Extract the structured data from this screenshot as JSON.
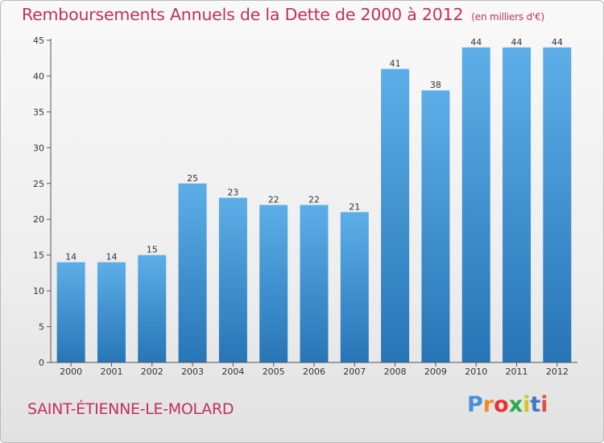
{
  "title": "Remboursements Annuels de la Dette de 2000 à 2012",
  "subtitle": "(en milliers d'€)",
  "location": "SAINT-ÉTIENNE-LE-MOLARD",
  "logo": {
    "letters": [
      "P",
      "r",
      "o",
      "x",
      "i",
      "t",
      "i"
    ],
    "colors": [
      "#4a90d9",
      "#f08c1e",
      "#e8322e",
      "#2aa84a",
      "#d4c42a",
      "#3a78c8",
      "#e0503a"
    ]
  },
  "colors": {
    "bar_top": "#5daee8",
    "bar_bottom": "#2775b6",
    "title": "#c0305f"
  },
  "chart_data": {
    "type": "bar",
    "categories": [
      "2000",
      "2001",
      "2002",
      "2003",
      "2004",
      "2005",
      "2006",
      "2007",
      "2008",
      "2009",
      "2010",
      "2011",
      "2012"
    ],
    "values": [
      14,
      14,
      15,
      25,
      23,
      22,
      22,
      21,
      41,
      38,
      44,
      44,
      44
    ],
    "ylim": [
      0,
      45
    ],
    "yticks": [
      0,
      5,
      10,
      15,
      20,
      25,
      30,
      35,
      40,
      45
    ],
    "grid": false
  }
}
